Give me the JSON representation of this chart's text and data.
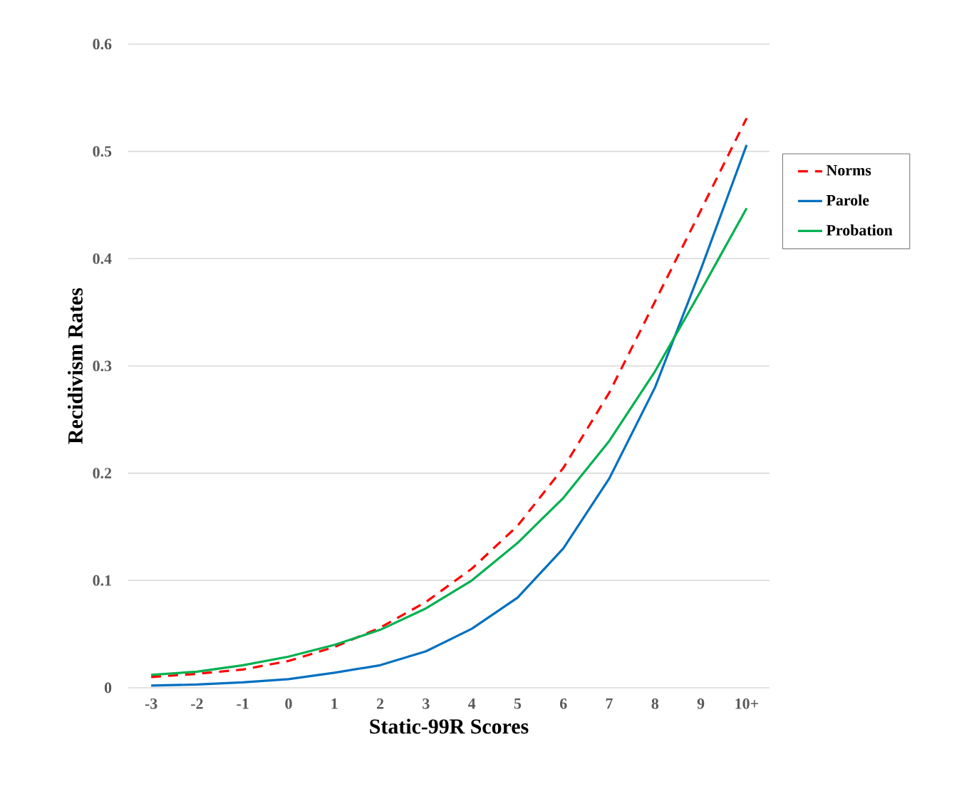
{
  "chart_data": {
    "type": "line",
    "xlabel": "Static-99R Scores",
    "ylabel": "Recidivism Rates",
    "categories": [
      "-3",
      "-2",
      "-1",
      "0",
      "1",
      "2",
      "3",
      "4",
      "5",
      "6",
      "7",
      "8",
      "9",
      "10+"
    ],
    "series": [
      {
        "name": "Norms",
        "color": "#ff0000",
        "line_style": "dashed",
        "values": [
          0.01,
          0.013,
          0.017,
          0.025,
          0.038,
          0.056,
          0.08,
          0.111,
          0.151,
          0.205,
          0.275,
          0.36,
          0.445,
          0.531
        ]
      },
      {
        "name": "Parole",
        "color": "#0070c0",
        "line_style": "solid",
        "values": [
          0.002,
          0.003,
          0.005,
          0.008,
          0.014,
          0.021,
          0.034,
          0.055,
          0.084,
          0.13,
          0.195,
          0.28,
          0.39,
          0.506
        ]
      },
      {
        "name": "Probation",
        "color": "#00b050",
        "line_style": "solid",
        "values": [
          0.012,
          0.015,
          0.021,
          0.029,
          0.04,
          0.054,
          0.074,
          0.1,
          0.135,
          0.177,
          0.23,
          0.295,
          0.37,
          0.447
        ]
      }
    ],
    "ylim": [
      0,
      0.6
    ],
    "yticks": [
      0,
      0.1,
      0.2,
      0.3,
      0.4,
      0.5,
      0.6
    ],
    "grid": "y",
    "legend": "right",
    "marker": "none"
  }
}
